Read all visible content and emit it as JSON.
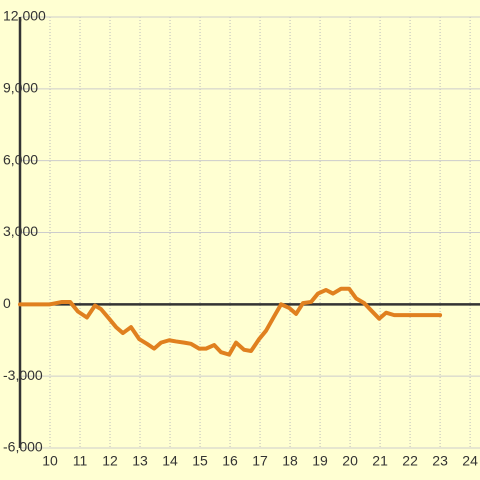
{
  "chart_data": {
    "type": "line",
    "x": [
      9.0,
      10.0,
      10.4,
      10.67,
      10.93,
      11.23,
      11.5,
      11.7,
      11.97,
      12.2,
      12.43,
      12.7,
      12.97,
      13.23,
      13.47,
      13.7,
      13.97,
      14.2,
      14.47,
      14.7,
      14.97,
      15.2,
      15.47,
      15.7,
      15.97,
      16.2,
      16.47,
      16.7,
      16.97,
      17.2,
      17.47,
      17.7,
      17.97,
      18.2,
      18.43,
      18.7,
      18.93,
      19.2,
      19.43,
      19.7,
      19.97,
      20.2,
      20.47,
      20.7,
      20.97,
      21.2,
      21.47,
      23.0
    ],
    "series": [
      {
        "color": "#e0801f",
        "values": [
          0,
          0,
          100,
          100,
          -300,
          -550,
          -50,
          -200,
          -600,
          -950,
          -1200,
          -950,
          -1450,
          -1650,
          -1850,
          -1600,
          -1500,
          -1550,
          -1600,
          -1650,
          -1850,
          -1850,
          -1700,
          -2000,
          -2100,
          -1600,
          -1900,
          -1950,
          -1450,
          -1100,
          -500,
          0,
          -150,
          -400,
          50,
          100,
          450,
          600,
          450,
          650,
          650,
          250,
          50,
          -250,
          -600,
          -350,
          -450,
          -450
        ]
      }
    ],
    "xlim": [
      9,
      24.33
    ],
    "xticks": [
      10,
      11,
      12,
      13,
      14,
      15,
      16,
      17,
      18,
      19,
      20,
      21,
      22,
      23,
      24
    ],
    "ylim": [
      -6000,
      12000
    ],
    "yticks": [
      {
        "value": -6000,
        "label": "-6,000"
      },
      {
        "value": -3000,
        "label": "-3,000"
      },
      0,
      {
        "value": 3000,
        "label": "3,000"
      },
      {
        "value": 6000,
        "label": "6,000"
      },
      {
        "value": 9000,
        "label": "9,000"
      },
      {
        "value": 12000,
        "label": "12,000"
      }
    ],
    "grid": true
  }
}
